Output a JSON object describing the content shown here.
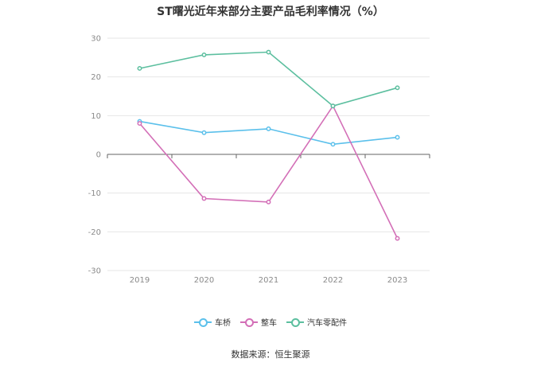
{
  "chart_data": {
    "type": "line",
    "title": "ST曙光近年来部分主要产品毛利率情况（%）",
    "categories": [
      "2019",
      "2020",
      "2021",
      "2022",
      "2023"
    ],
    "ylim": [
      -30,
      30
    ],
    "yticks": [
      "30",
      "20",
      "10",
      "0",
      "-10",
      "-20",
      "-30"
    ],
    "grid": true,
    "legend_position": "bottom",
    "series": [
      {
        "name": "车桥",
        "color": "#5bc0eb",
        "values": [
          8.5,
          5.6,
          6.6,
          2.6,
          4.4
        ]
      },
      {
        "name": "整车",
        "color": "#d36fb7",
        "values": [
          8.0,
          -11.4,
          -12.3,
          12.5,
          -21.7
        ]
      },
      {
        "name": "汽车零配件",
        "color": "#5cbf9f",
        "values": [
          22.2,
          25.7,
          26.4,
          12.5,
          17.2
        ]
      }
    ]
  },
  "footer": {
    "source": "数据来源：恒生聚源"
  }
}
